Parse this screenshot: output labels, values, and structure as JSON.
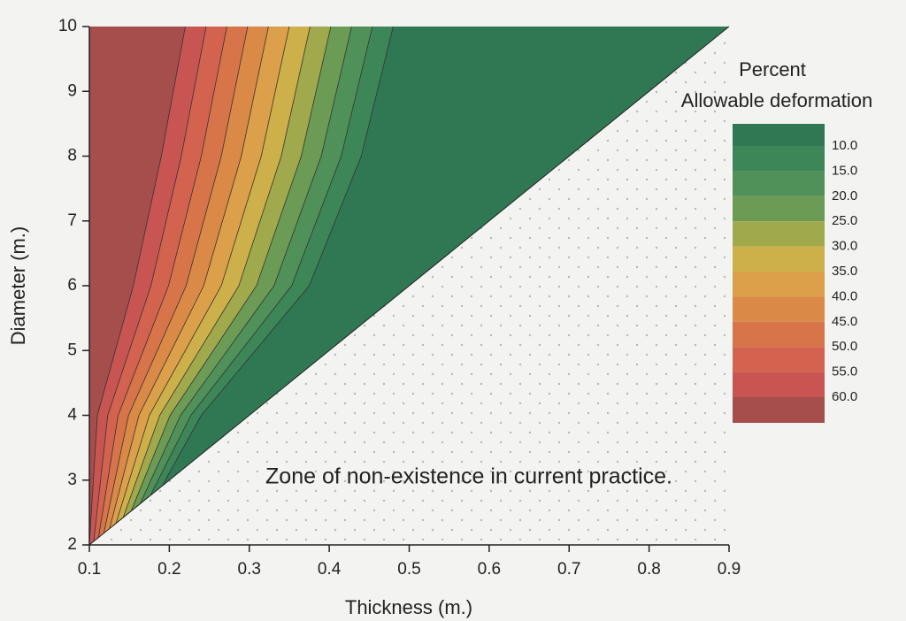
{
  "chart_data": {
    "type": "contour",
    "xlabel": "Thickness (m.)",
    "ylabel": "Diameter (m.)",
    "annotation": "Zone of non-existence in current practice.",
    "legend_title": [
      "Percent",
      "Allowable deformation"
    ],
    "xlim": [
      0.1,
      0.9
    ],
    "ylim": [
      2,
      10
    ],
    "xticks": [
      0.1,
      0.2,
      0.3,
      0.4,
      0.5,
      0.6,
      0.7,
      0.8,
      0.9
    ],
    "yticks": [
      2,
      3,
      4,
      5,
      6,
      7,
      8,
      9,
      10
    ],
    "levels": [
      {
        "value": 10,
        "label": "10.0"
      },
      {
        "value": 15,
        "label": "15.0"
      },
      {
        "value": 20,
        "label": "20.0"
      },
      {
        "value": 25,
        "label": "25.0"
      },
      {
        "value": 30,
        "label": "30.0"
      },
      {
        "value": 35,
        "label": "35.0"
      },
      {
        "value": 40,
        "label": "40.0"
      },
      {
        "value": 45,
        "label": "45.0"
      },
      {
        "value": 50,
        "label": "50.0"
      },
      {
        "value": 55,
        "label": "55.0"
      },
      {
        "value": 60,
        "label": "60.0"
      }
    ],
    "colors": [
      "#2f7853",
      "#3d8657",
      "#4f9158",
      "#6c9b55",
      "#a0a94c",
      "#cdb04a",
      "#dc9f4a",
      "#da8946",
      "#d8744a",
      "#d3624f",
      "#c95553",
      "#a64e4c"
    ],
    "contour_y": [
      2,
      4,
      6,
      8,
      10
    ],
    "contours": [
      {
        "x": [
          0.15,
          0.24,
          0.375,
          0.44,
          0.48
        ]
      },
      {
        "x": [
          0.145,
          0.227,
          0.353,
          0.415,
          0.454
        ]
      },
      {
        "x": [
          0.14,
          0.214,
          0.331,
          0.39,
          0.428
        ]
      },
      {
        "x": [
          0.135,
          0.201,
          0.309,
          0.365,
          0.402
        ]
      },
      {
        "x": [
          0.13,
          0.188,
          0.287,
          0.34,
          0.376
        ]
      },
      {
        "x": [
          0.125,
          0.175,
          0.265,
          0.315,
          0.35
        ]
      },
      {
        "x": [
          0.12,
          0.162,
          0.243,
          0.29,
          0.324
        ]
      },
      {
        "x": [
          0.115,
          0.149,
          0.221,
          0.265,
          0.298
        ]
      },
      {
        "x": [
          0.11,
          0.136,
          0.199,
          0.24,
          0.272
        ]
      },
      {
        "x": [
          0.105,
          0.123,
          0.177,
          0.215,
          0.246
        ]
      },
      {
        "x": [
          0.1,
          0.11,
          0.155,
          0.19,
          0.22
        ]
      }
    ]
  }
}
